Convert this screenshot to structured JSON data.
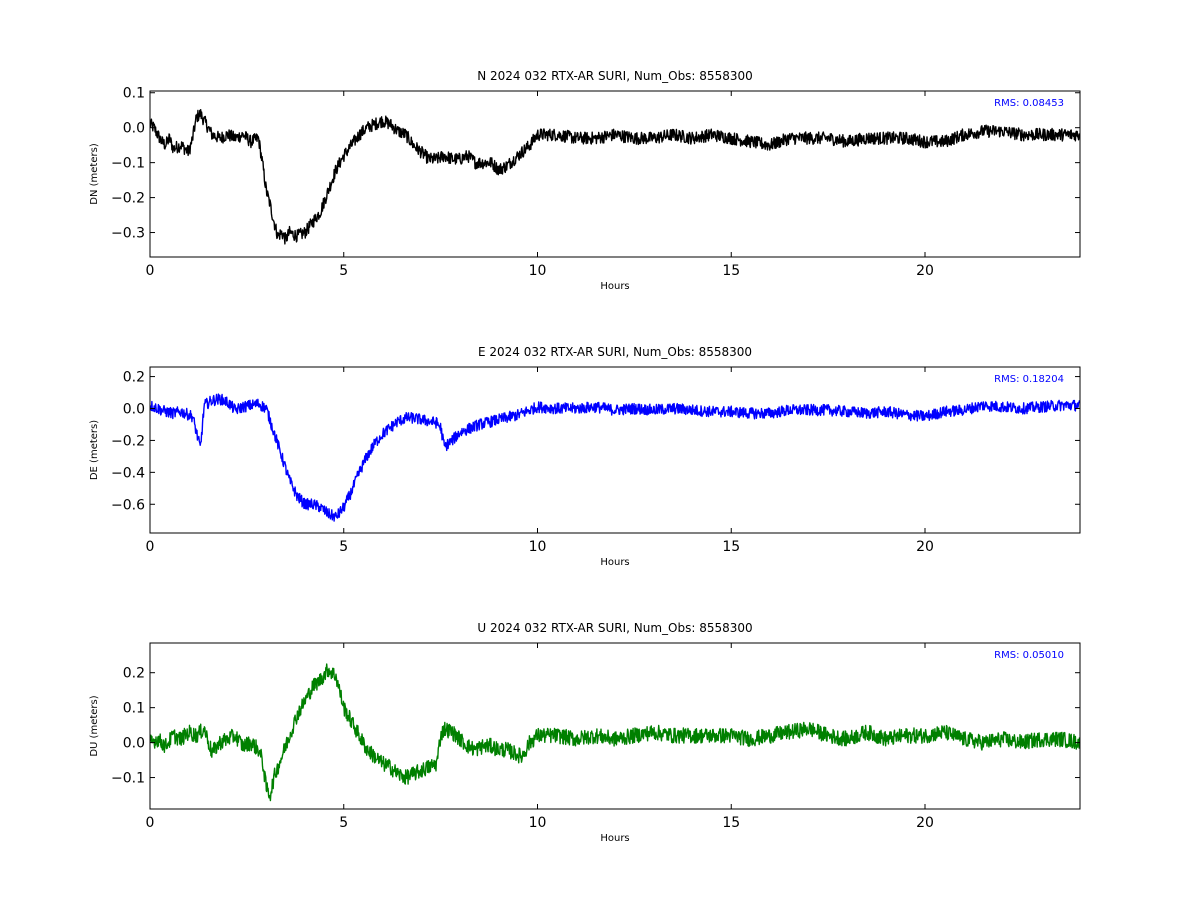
{
  "chart_data": [
    {
      "type": "line",
      "title": "N 2024 032 RTX-AR  SURI, Num_Obs: 8558300",
      "xlabel": "Hours",
      "ylabel": "DN (meters)",
      "annotation": "RMS:  0.08453",
      "annotation_color": "#0000ff",
      "color": "#000000",
      "xlim": [
        0,
        24
      ],
      "ylim": [
        -0.37,
        0.105
      ],
      "xticks": [
        0,
        5,
        10,
        15,
        20
      ],
      "xtick_labels": [
        "0",
        "5",
        "10",
        "15",
        "20"
      ],
      "yticks": [
        -0.3,
        -0.2,
        -0.1,
        0.0,
        0.1
      ],
      "ytick_labels": [
        "−0.3",
        "−0.2",
        "−0.1",
        "0.0",
        "0.1"
      ],
      "series": [
        {
          "x": [
            0,
            0.1,
            0.2,
            0.3,
            0.4,
            0.5,
            0.6,
            0.8,
            1.0,
            1.1,
            1.2,
            1.3,
            1.4,
            1.6,
            1.8,
            2.0,
            2.2,
            2.4,
            2.6,
            2.8,
            2.9,
            3.0,
            3.1,
            3.2,
            3.3,
            3.4,
            3.5,
            3.6,
            3.8,
            4.0,
            4.2,
            4.4,
            4.6,
            4.8,
            5.0,
            5.2,
            5.4,
            5.6,
            5.8,
            6.0,
            6.2,
            6.4,
            6.6,
            6.8,
            7.0,
            7.2,
            7.4,
            7.6,
            7.8,
            8.0,
            8.2,
            8.4,
            8.6,
            8.8,
            9.0,
            9.2,
            9.4,
            9.6,
            9.8,
            10.0,
            10.5,
            11,
            11.5,
            12,
            12.5,
            13,
            13.5,
            14,
            14.5,
            15,
            15.5,
            16,
            16.5,
            17,
            17.5,
            18,
            18.5,
            19,
            19.5,
            20,
            20.5,
            21,
            21.5,
            22,
            22.5,
            23,
            23.5,
            24
          ],
          "y": [
            0.01,
            0.0,
            -0.02,
            -0.04,
            -0.05,
            -0.03,
            -0.06,
            -0.05,
            -0.07,
            -0.03,
            0.03,
            0.04,
            0.02,
            -0.02,
            -0.03,
            -0.02,
            -0.03,
            -0.02,
            -0.04,
            -0.03,
            -0.1,
            -0.18,
            -0.22,
            -0.27,
            -0.31,
            -0.3,
            -0.32,
            -0.3,
            -0.31,
            -0.3,
            -0.27,
            -0.24,
            -0.18,
            -0.12,
            -0.08,
            -0.05,
            -0.02,
            0.0,
            0.01,
            0.02,
            0.01,
            -0.01,
            -0.02,
            -0.05,
            -0.07,
            -0.09,
            -0.09,
            -0.08,
            -0.09,
            -0.09,
            -0.08,
            -0.1,
            -0.1,
            -0.1,
            -0.12,
            -0.11,
            -0.09,
            -0.07,
            -0.05,
            -0.02,
            -0.02,
            -0.03,
            -0.03,
            -0.02,
            -0.03,
            -0.03,
            -0.02,
            -0.03,
            -0.02,
            -0.03,
            -0.04,
            -0.05,
            -0.03,
            -0.03,
            -0.03,
            -0.04,
            -0.03,
            -0.03,
            -0.03,
            -0.04,
            -0.04,
            -0.02,
            -0.01,
            -0.01,
            -0.02,
            -0.02,
            -0.02,
            -0.02
          ],
          "noise": 0.018
        }
      ]
    },
    {
      "type": "line",
      "title": "E 2024 032 RTX-AR  SURI, Num_Obs: 8558300",
      "xlabel": "Hours",
      "ylabel": "DE (meters)",
      "annotation": "RMS:  0.18204",
      "annotation_color": "#0000ff",
      "color": "#0000ff",
      "xlim": [
        0,
        24
      ],
      "ylim": [
        -0.78,
        0.26
      ],
      "xticks": [
        0,
        5,
        10,
        15,
        20
      ],
      "xtick_labels": [
        "0",
        "5",
        "10",
        "15",
        "20"
      ],
      "yticks": [
        -0.6,
        -0.4,
        -0.2,
        0.0,
        0.2
      ],
      "ytick_labels": [
        "−0.6",
        "−0.4",
        "−0.2",
        "0.0",
        "0.2"
      ],
      "series": [
        {
          "x": [
            0,
            0.2,
            0.4,
            0.6,
            0.8,
            1.0,
            1.1,
            1.2,
            1.3,
            1.4,
            1.6,
            1.8,
            2.0,
            2.2,
            2.4,
            2.6,
            2.8,
            3.0,
            3.2,
            3.4,
            3.6,
            3.8,
            4.0,
            4.2,
            4.4,
            4.6,
            4.8,
            5.0,
            5.2,
            5.4,
            5.6,
            5.8,
            6.0,
            6.2,
            6.4,
            6.6,
            6.8,
            7.0,
            7.2,
            7.4,
            7.5,
            7.6,
            7.8,
            8.0,
            8.5,
            9.0,
            9.5,
            10.0,
            10.5,
            11,
            11.5,
            12,
            12.5,
            13,
            13.5,
            14,
            14.5,
            15,
            15.5,
            16,
            16.5,
            17,
            17.5,
            18,
            18.5,
            19,
            19.5,
            20,
            20.5,
            21,
            21.5,
            22,
            22.5,
            23,
            23.5,
            24
          ],
          "y": [
            0.02,
            0.0,
            -0.02,
            -0.03,
            -0.02,
            -0.04,
            -0.05,
            -0.15,
            -0.25,
            0.02,
            0.05,
            0.06,
            0.04,
            -0.01,
            0.01,
            0.02,
            0.03,
            0.0,
            -0.15,
            -0.3,
            -0.45,
            -0.55,
            -0.6,
            -0.6,
            -0.62,
            -0.66,
            -0.68,
            -0.62,
            -0.52,
            -0.4,
            -0.3,
            -0.22,
            -0.16,
            -0.12,
            -0.08,
            -0.06,
            -0.06,
            -0.07,
            -0.08,
            -0.09,
            -0.12,
            -0.24,
            -0.2,
            -0.15,
            -0.1,
            -0.07,
            -0.04,
            0.01,
            0.0,
            0.0,
            0.01,
            -0.01,
            0.0,
            -0.01,
            0.0,
            -0.01,
            -0.02,
            -0.02,
            -0.03,
            -0.03,
            -0.01,
            -0.01,
            -0.01,
            -0.02,
            -0.03,
            -0.02,
            -0.04,
            -0.05,
            -0.02,
            -0.01,
            0.02,
            0.01,
            0.0,
            0.01,
            0.02,
            0.02
          ],
          "noise": 0.035
        }
      ]
    },
    {
      "type": "line",
      "title": "U 2024 032 RTX-AR  SURI, Num_Obs: 8558300",
      "xlabel": "Hours",
      "ylabel": "DU (meters)",
      "annotation": "RMS:  0.05010",
      "annotation_color": "#0000ff",
      "color": "#008000",
      "xlim": [
        0,
        24
      ],
      "ylim": [
        -0.19,
        0.285
      ],
      "xticks": [
        0,
        5,
        10,
        15,
        20
      ],
      "xtick_labels": [
        "0",
        "5",
        "10",
        "15",
        "20"
      ],
      "yticks": [
        -0.1,
        0.0,
        0.1,
        0.2
      ],
      "ytick_labels": [
        "−0.1",
        "0.0",
        "0.1",
        "0.2"
      ],
      "series": [
        {
          "x": [
            0,
            0.2,
            0.4,
            0.6,
            0.8,
            1.0,
            1.2,
            1.4,
            1.6,
            1.8,
            2.0,
            2.2,
            2.4,
            2.6,
            2.8,
            2.9,
            3.0,
            3.1,
            3.2,
            3.4,
            3.6,
            3.8,
            4.0,
            4.2,
            4.4,
            4.6,
            4.8,
            5.0,
            5.2,
            5.4,
            5.6,
            5.8,
            6.0,
            6.2,
            6.4,
            6.6,
            6.8,
            7.0,
            7.2,
            7.4,
            7.5,
            7.6,
            7.8,
            8.0,
            8.2,
            8.4,
            8.6,
            8.8,
            9.0,
            9.2,
            9.4,
            9.6,
            9.8,
            10.0,
            10.5,
            11,
            11.5,
            12,
            12.5,
            13,
            13.5,
            14,
            14.5,
            15,
            15.5,
            16,
            16.5,
            17,
            17.5,
            18,
            18.5,
            19,
            19.5,
            20,
            20.5,
            21,
            21.5,
            22,
            22.5,
            23,
            23.5,
            24
          ],
          "y": [
            0.0,
            0.01,
            -0.01,
            0.02,
            0.01,
            0.03,
            0.02,
            0.04,
            -0.03,
            0.0,
            0.01,
            0.02,
            -0.01,
            0.0,
            -0.02,
            -0.05,
            -0.13,
            -0.15,
            -0.1,
            -0.04,
            0.02,
            0.08,
            0.12,
            0.16,
            0.18,
            0.21,
            0.19,
            0.1,
            0.06,
            0.02,
            -0.02,
            -0.04,
            -0.06,
            -0.07,
            -0.09,
            -0.1,
            -0.09,
            -0.08,
            -0.07,
            -0.06,
            0.02,
            0.04,
            0.03,
            0.01,
            -0.01,
            -0.02,
            -0.01,
            -0.01,
            -0.02,
            -0.02,
            -0.03,
            -0.04,
            0.0,
            0.02,
            0.02,
            0.01,
            0.02,
            0.01,
            0.02,
            0.03,
            0.02,
            0.02,
            0.02,
            0.02,
            0.01,
            0.02,
            0.03,
            0.04,
            0.02,
            0.01,
            0.03,
            0.01,
            0.02,
            0.02,
            0.03,
            0.01,
            0.0,
            0.01,
            0.0,
            0.01,
            0.01,
            0.0
          ],
          "noise": 0.022
        }
      ]
    }
  ]
}
